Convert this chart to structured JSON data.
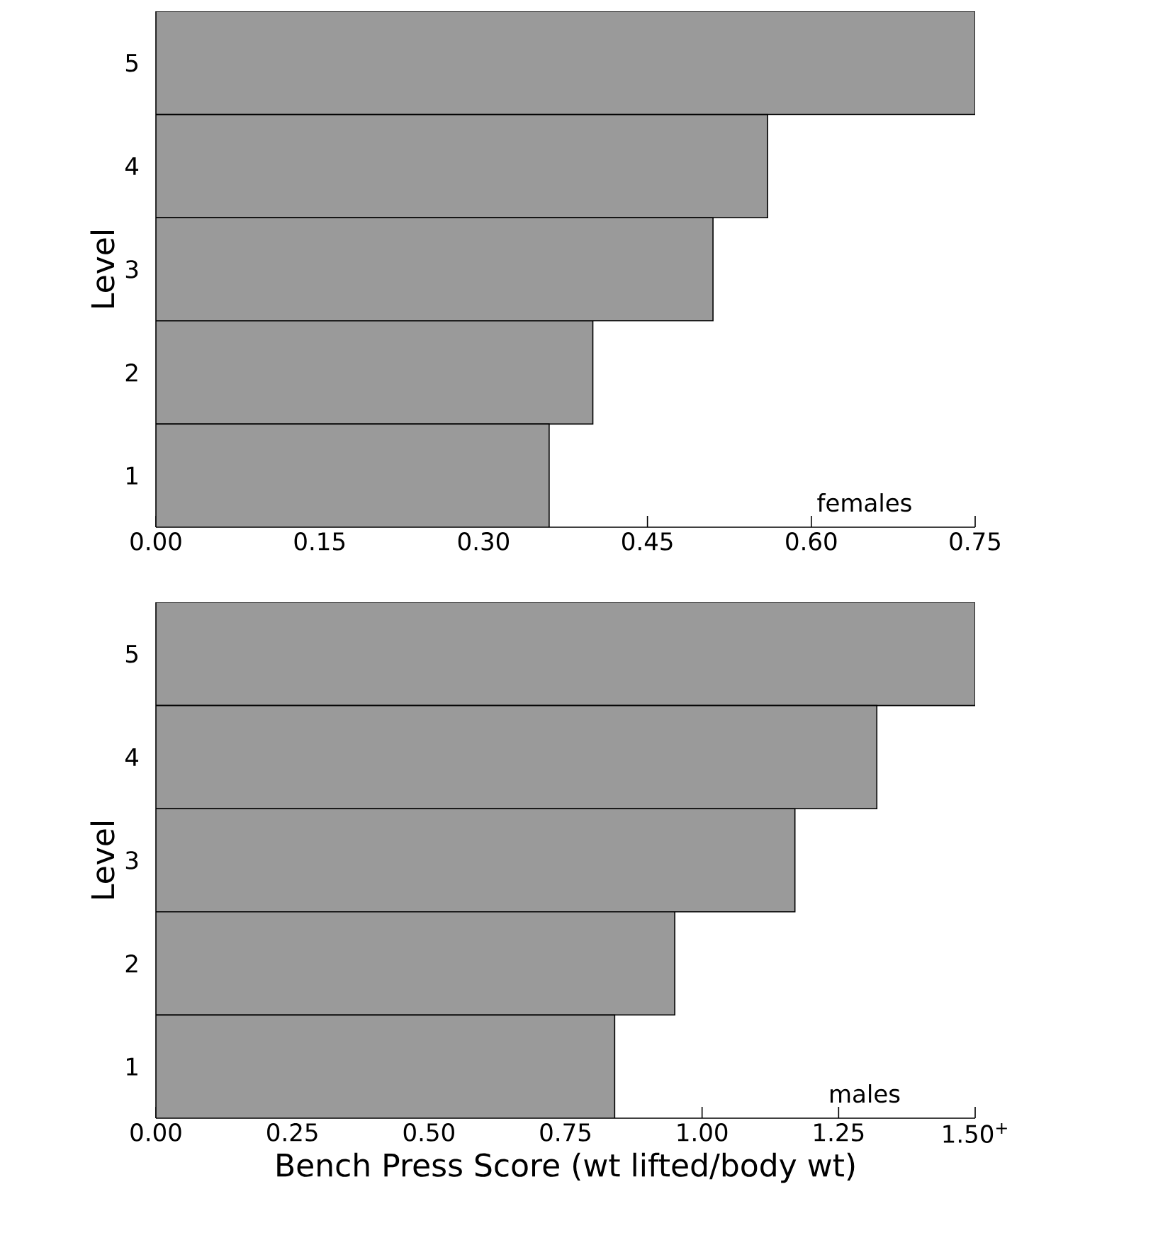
{
  "chart_data": [
    {
      "type": "bar",
      "orientation": "horizontal",
      "ylabel": "Level",
      "categories": [
        "5",
        "4",
        "3",
        "2",
        "1"
      ],
      "values": [
        0.75,
        0.56,
        0.51,
        0.4,
        0.36
      ],
      "color": "#9a9a9a",
      "xlim": [
        0,
        0.75
      ],
      "xticks": [
        {
          "value": 0,
          "label": "0.00"
        },
        {
          "value": 0.15,
          "label": "0.15"
        },
        {
          "value": 0.3,
          "label": "0.30"
        },
        {
          "value": 0.45,
          "label": "0.45"
        },
        {
          "value": 0.6,
          "label": "0.60"
        },
        {
          "value": 0.75,
          "label": "0.75"
        }
      ],
      "annotations": [
        "females"
      ]
    },
    {
      "type": "bar",
      "orientation": "horizontal",
      "ylabel": "Level",
      "xlabel": "Bench Press Score (wt lifted/body wt)",
      "categories": [
        "5",
        "4",
        "3",
        "2",
        "1"
      ],
      "values": [
        1.5,
        1.32,
        1.17,
        0.95,
        0.84
      ],
      "color": "#9a9a9a",
      "xlim": [
        0,
        1.5
      ],
      "xticks": [
        {
          "value": 0,
          "label": "0.00"
        },
        {
          "value": 0.25,
          "label": "0.25"
        },
        {
          "value": 0.5,
          "label": "0.50"
        },
        {
          "value": 0.75,
          "label": "0.75"
        },
        {
          "value": 1.0,
          "label": "1.00"
        },
        {
          "value": 1.25,
          "label": "1.25"
        },
        {
          "value": 1.5,
          "label": "1.50$^{+}$"
        }
      ],
      "annotations": [
        "males"
      ]
    }
  ]
}
